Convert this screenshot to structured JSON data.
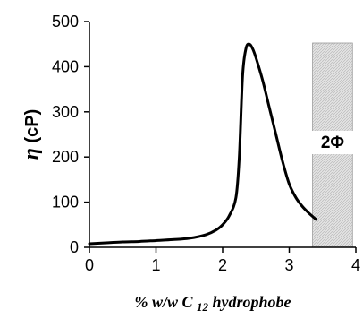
{
  "chart_data": {
    "type": "line",
    "x": [
      0,
      0.25,
      0.5,
      0.75,
      1.0,
      1.25,
      1.5,
      1.75,
      1.9,
      2.0,
      2.1,
      2.2,
      2.25,
      2.3,
      2.35,
      2.4,
      2.45,
      2.5,
      2.6,
      2.7,
      2.8,
      2.9,
      3.0,
      3.1,
      3.2,
      3.3,
      3.4
    ],
    "y": [
      8,
      10,
      12,
      13,
      15,
      17,
      20,
      28,
      38,
      50,
      70,
      110,
      200,
      380,
      440,
      450,
      440,
      420,
      370,
      310,
      250,
      190,
      140,
      110,
      90,
      75,
      62
    ],
    "xlim": [
      0,
      4
    ],
    "ylim": [
      0,
      500
    ],
    "xticks": [
      0,
      1,
      2,
      3,
      4
    ],
    "yticks": [
      0,
      100,
      200,
      300,
      400,
      500
    ],
    "xlabel": "% w/w C 12 hydrophobe",
    "xlabel_parts": {
      "prefix": "% w/w C ",
      "subscript": "12",
      "suffix": " hydrophobe"
    },
    "ylabel_symbol": "η",
    "ylabel_unit": " (cP)",
    "ylabel": "η (cP)",
    "phase_region": {
      "x_start": 3.35,
      "x_end": 3.95,
      "label": "2Φ"
    },
    "line_color": "#000000",
    "phase_fill_color": "#d9d9d9"
  }
}
